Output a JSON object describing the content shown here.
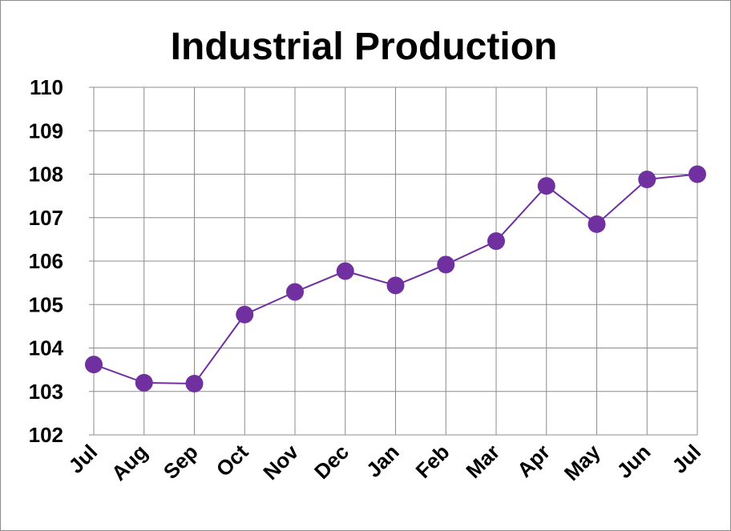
{
  "chart_data": {
    "type": "line",
    "title": "Industrial Production",
    "xlabel": "",
    "ylabel": "",
    "categories": [
      "Jul",
      "Aug",
      "Sep",
      "Oct",
      "Nov",
      "Dec",
      "Jan",
      "Feb",
      "Mar",
      "Apr",
      "May",
      "Jun",
      "Jul"
    ],
    "series": [
      {
        "values": [
          103.62,
          103.2,
          103.18,
          104.77,
          105.29,
          105.77,
          105.44,
          105.92,
          106.46,
          107.73,
          106.85,
          107.88,
          108.0
        ]
      }
    ],
    "ylim": [
      102,
      110
    ],
    "yticks": [
      "102",
      "103",
      "104",
      "105",
      "106",
      "107",
      "108",
      "109",
      "110"
    ],
    "grid": true,
    "legend": "none",
    "colors": {
      "line": "#7030A0",
      "marker": "#7030A0",
      "grid": "#8c8c8c"
    }
  }
}
